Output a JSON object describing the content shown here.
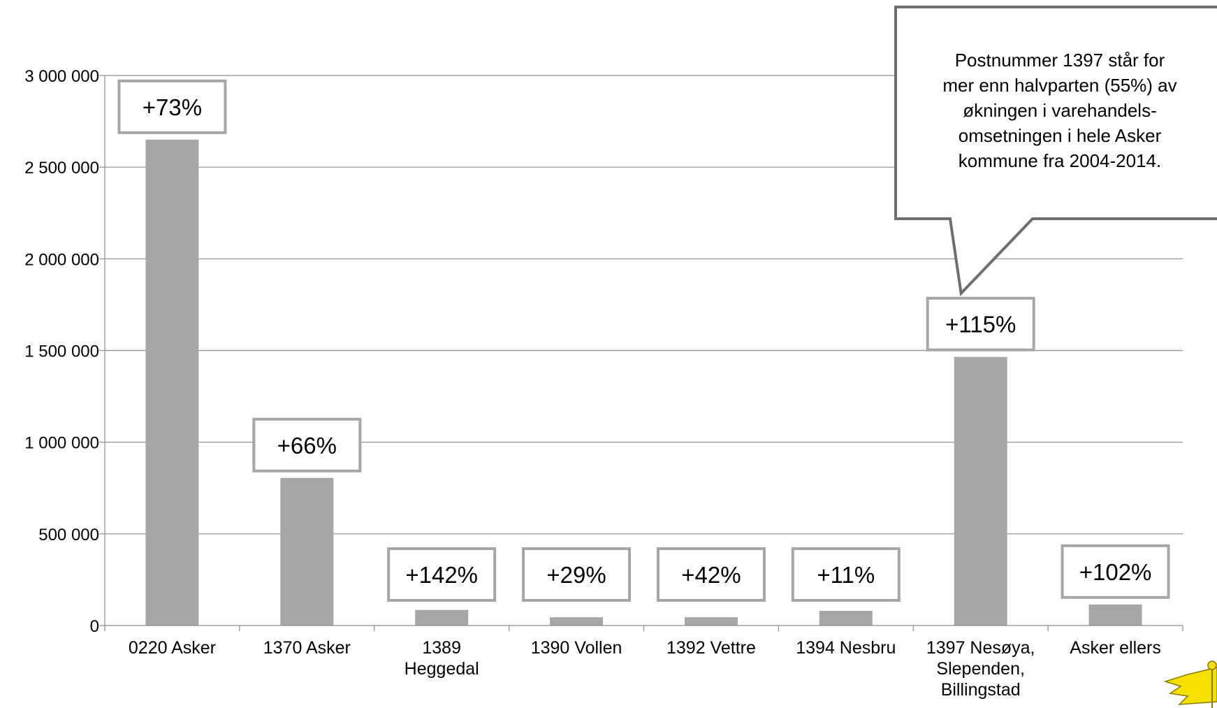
{
  "chart_data": {
    "type": "bar",
    "categories": [
      [
        "0220 Asker"
      ],
      [
        "1370 Asker"
      ],
      [
        "1389",
        "Heggedal"
      ],
      [
        "1390 Vollen"
      ],
      [
        "1392 Vettre"
      ],
      [
        "1394 Nesbru"
      ],
      [
        "1397 Nesøya,",
        "Slependen,",
        "Billingstad"
      ],
      [
        "Asker ellers"
      ]
    ],
    "values": [
      2650000,
      805000,
      85000,
      45000,
      45000,
      80000,
      1465000,
      115000
    ],
    "data_labels": [
      "+73%",
      "+66%",
      "+142%",
      "+29%",
      "+42%",
      "+11%",
      "+115%",
      "+102%"
    ],
    "ylim": [
      0,
      3000000
    ],
    "yticks": [
      0,
      500000,
      1000000,
      1500000,
      2000000,
      2500000,
      3000000
    ],
    "ytick_labels": [
      "0",
      "500 000",
      "1 000 000",
      "1 500 000",
      "2 000 000",
      "2 500 000",
      "3 000 000"
    ],
    "grid": true,
    "legend": "none",
    "bar_color": "#a6a6a6",
    "label_border_color": "#a6a6a6",
    "callout": {
      "lines": [
        "Postnummer 1397 står for",
        "mer enn halvparten (55%) av",
        "økningen i varehandels-",
        "omsetningen i hele Asker",
        "kommune fra 2004-2014."
      ],
      "border_color": "#6e6e6e",
      "points_to": "1397 Nesøya, Slependen, Billingstad"
    },
    "logo_color": "#f5e000"
  }
}
